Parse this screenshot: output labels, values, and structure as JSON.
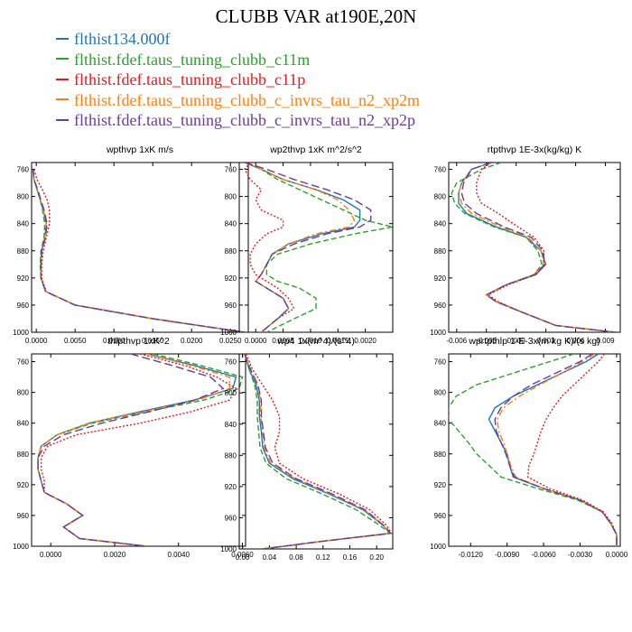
{
  "title": "CLUBB VAR at190E,20N",
  "legend": [
    {
      "name": "flthist134.000f",
      "color": "#1f77b4",
      "dash": "solid"
    },
    {
      "name": "flthist.fdef.taus_tuning_clubb_c11m",
      "color": "#2ca02c",
      "dash": "dashed"
    },
    {
      "name": "flthist.fdef.taus_tuning_clubb_c11p",
      "color": "#e41a1c",
      "dash": "dotted"
    },
    {
      "name": "flthist.fdef.taus_tuning_clubb_c_invrs_tau_n2_xp2m",
      "color": "#ff7f0e",
      "dash": "dashdot"
    },
    {
      "name": "flthist.fdef.taus_tuning_clubb_c_invrs_tau_n2_xp2p",
      "color": "#6a3d9a",
      "dash": "longdash"
    }
  ],
  "chart_data": [
    {
      "type": "line",
      "title": "wpthvp   1xK m/s",
      "ylim": [
        1000,
        750
      ],
      "xlim": [
        -0.0006,
        0.0273
      ],
      "yticks": [
        760,
        800,
        840,
        880,
        920,
        960,
        1000
      ],
      "xticks": [
        0.0,
        0.005,
        0.01,
        0.015,
        0.02,
        0.025
      ],
      "xticklabels": [
        "0.0000",
        "0.0050",
        "0.0100",
        "0.0150",
        "0.0200",
        "0.0250"
      ],
      "y": [
        760,
        775,
        790,
        805,
        820,
        840,
        860,
        880,
        900,
        920,
        940,
        960,
        980,
        1000
      ],
      "series": [
        {
          "values": [
            -0.0004,
            -0.0003,
            0.0001,
            0.0005,
            0.0009,
            0.0013,
            0.0011,
            0.0007,
            0.0006,
            0.0006,
            0.0012,
            0.005,
            0.015,
            0.0268
          ]
        },
        {
          "values": [
            -0.0004,
            -0.0003,
            0.0001,
            0.0005,
            0.0008,
            0.0011,
            0.001,
            0.0006,
            0.0005,
            0.0006,
            0.0012,
            0.005,
            0.015,
            0.0268
          ]
        },
        {
          "values": [
            -0.0003,
            0.0001,
            0.0008,
            0.0014,
            0.0017,
            0.0017,
            0.0013,
            0.0009,
            0.0007,
            0.0007,
            0.0013,
            0.005,
            0.015,
            0.0268
          ]
        },
        {
          "values": [
            -0.0004,
            -0.0003,
            0.0001,
            0.0005,
            0.0009,
            0.0013,
            0.0011,
            0.0007,
            0.0006,
            0.0006,
            0.0012,
            0.005,
            0.015,
            0.0268
          ]
        },
        {
          "values": [
            -0.0004,
            -0.0003,
            0.0002,
            0.0006,
            0.001,
            0.0014,
            0.0012,
            0.0007,
            0.0006,
            0.0006,
            0.0012,
            0.005,
            0.015,
            0.0268
          ]
        }
      ]
    },
    {
      "type": "line",
      "title": "wp2thvp   1xK m^2/s^2",
      "ylim": [
        1000,
        750
      ],
      "xlim": [
        -0.0003,
        0.0025
      ],
      "yticks": [
        760,
        800,
        840,
        880,
        920,
        960,
        1000
      ],
      "xticks": [
        0.0,
        0.0005,
        0.001,
        0.0015,
        0.002
      ],
      "xticklabels": [
        "0.0000",
        "0.0005",
        "0.0010",
        "0.0015",
        "0.0020"
      ],
      "y": [
        750,
        760,
        775,
        790,
        805,
        820,
        835,
        845,
        855,
        870,
        885,
        900,
        915,
        925,
        935,
        950,
        965,
        980,
        1000
      ],
      "series": [
        {
          "values": [
            -0.0002,
            0.0001,
            0.0005,
            0.0011,
            0.0016,
            0.0019,
            0.0019,
            0.0018,
            0.0012,
            0.0006,
            0.0003,
            0.0002,
            0.0001,
            0.0,
            0.0002,
            0.0005,
            0.0006,
            0.0004,
            0.0001
          ]
        },
        {
          "values": [
            -0.0002,
            0.0001,
            0.0004,
            0.0008,
            0.0012,
            0.0016,
            0.002,
            0.0025,
            0.0018,
            0.001,
            0.0004,
            0.0002,
            0.0002,
            0.0004,
            0.0008,
            0.0011,
            0.0011,
            0.0007,
            0.0002
          ]
        },
        {
          "values": [
            -0.0001,
            -0.0002,
            -0.0001,
            0.0001,
            0.0,
            0.0001,
            0.0005,
            0.0005,
            0.0002,
            0.0,
            -0.0001,
            -0.0001,
            0.0,
            0.0002,
            0.0004,
            0.0006,
            0.0007,
            0.0004,
            0.0001
          ]
        },
        {
          "values": [
            -0.0002,
            0.0001,
            0.0005,
            0.0011,
            0.0015,
            0.0017,
            0.0018,
            0.0017,
            0.0011,
            0.0006,
            0.0003,
            0.0002,
            0.0001,
            0.0,
            0.0002,
            0.0005,
            0.0006,
            0.0004,
            0.0001
          ]
        },
        {
          "values": [
            -0.0002,
            0.0002,
            0.0007,
            0.0013,
            0.0018,
            0.0021,
            0.0021,
            0.0019,
            0.0013,
            0.0007,
            0.0003,
            0.0002,
            0.0001,
            0.0,
            0.0002,
            0.0005,
            0.0006,
            0.0004,
            0.0001
          ]
        }
      ]
    },
    {
      "type": "line",
      "title": "rtpthvp   1E-3x(kg/kg) K",
      "ylim": [
        1000,
        750
      ],
      "xlim": [
        -0.0068,
        0.0105
      ],
      "yticks": [
        760,
        800,
        840,
        880,
        920,
        960,
        1000
      ],
      "xticks": [
        -0.006,
        -0.003,
        0.0,
        0.003,
        0.006,
        0.009
      ],
      "xticklabels": [
        "-0.006",
        "-0.003",
        "0.000",
        "0.003",
        "0.006",
        "0.009"
      ],
      "y": [
        750,
        760,
        780,
        795,
        810,
        825,
        845,
        860,
        880,
        900,
        915,
        930,
        945,
        955,
        970,
        990,
        1000
      ],
      "series": [
        {
          "values": [
            -0.0025,
            -0.0045,
            -0.0055,
            -0.0058,
            -0.0058,
            -0.005,
            -0.002,
            0.001,
            0.0025,
            0.003,
            0.002,
            -0.001,
            -0.003,
            -0.002,
            0.0005,
            0.004,
            0.01
          ]
        },
        {
          "values": [
            -0.0015,
            -0.0035,
            -0.006,
            -0.0065,
            -0.0062,
            -0.0052,
            -0.0022,
            0.001,
            0.0022,
            0.0026,
            0.0018,
            -0.001,
            -0.003,
            -0.002,
            0.0005,
            0.004,
            0.01
          ]
        },
        {
          "values": [
            -0.0025,
            -0.0035,
            -0.004,
            -0.004,
            -0.0035,
            -0.0018,
            0.0002,
            0.0018,
            0.0028,
            0.0028,
            0.002,
            -0.0008,
            -0.0028,
            -0.0018,
            0.0005,
            0.004,
            0.01
          ]
        },
        {
          "values": [
            -0.0025,
            -0.0045,
            -0.0055,
            -0.0058,
            -0.0055,
            -0.0045,
            -0.0015,
            0.0012,
            0.0025,
            0.0028,
            0.0018,
            -0.001,
            -0.003,
            -0.002,
            0.0005,
            0.004,
            0.01
          ]
        },
        {
          "values": [
            -0.0025,
            -0.0045,
            -0.0053,
            -0.0055,
            -0.0052,
            -0.004,
            -0.0012,
            0.0015,
            0.0027,
            0.0029,
            0.0019,
            -0.001,
            -0.003,
            -0.002,
            0.0005,
            0.004,
            0.01
          ]
        }
      ]
    },
    {
      "type": "line",
      "title": "thlpthvp   1xK^2",
      "ylim": [
        1000,
        750
      ],
      "xlim": [
        -0.0006,
        0.0061
      ],
      "yticks": [
        760,
        800,
        840,
        880,
        920,
        960,
        1000
      ],
      "xticks": [
        0.0,
        0.002,
        0.004,
        0.006
      ],
      "xticklabels": [
        "0.0000",
        "0.0020",
        "0.0040",
        "0.0060"
      ],
      "y": [
        750,
        765,
        780,
        795,
        810,
        825,
        840,
        855,
        870,
        885,
        900,
        915,
        930,
        945,
        960,
        975,
        990,
        1000
      ],
      "series": [
        {
          "values": [
            0.003,
            0.0045,
            0.0058,
            0.0057,
            0.0045,
            0.0028,
            0.0012,
            0.0002,
            -0.0003,
            -0.0004,
            -0.0004,
            -0.0003,
            -0.0002,
            0.0005,
            0.001,
            0.0004,
            0.0009,
            0.003
          ]
        },
        {
          "values": [
            0.0032,
            0.0047,
            0.006,
            0.0059,
            0.0048,
            0.003,
            0.0013,
            0.0002,
            -0.0003,
            -0.0004,
            -0.0004,
            -0.0003,
            -0.0002,
            0.0005,
            0.001,
            0.0004,
            0.0009,
            0.003
          ]
        },
        {
          "values": [
            0.0028,
            0.0042,
            0.0052,
            0.0058,
            0.0056,
            0.0044,
            0.0028,
            0.0008,
            -0.0001,
            -0.0003,
            -0.0003,
            -0.0002,
            -0.0002,
            0.0005,
            0.001,
            0.0004,
            0.0009,
            0.003
          ]
        },
        {
          "values": [
            0.003,
            0.0044,
            0.0056,
            0.0056,
            0.0046,
            0.0029,
            0.0012,
            0.0002,
            -0.0003,
            -0.0004,
            -0.0004,
            -0.0003,
            -0.0002,
            0.0005,
            0.001,
            0.0004,
            0.0009,
            0.003
          ]
        },
        {
          "values": [
            0.0025,
            0.0038,
            0.005,
            0.0054,
            0.0045,
            0.0031,
            0.0016,
            0.0004,
            -0.0002,
            -0.0004,
            -0.0004,
            -0.0003,
            -0.0002,
            0.0005,
            0.001,
            0.0004,
            0.0009,
            0.003
          ]
        }
      ]
    },
    {
      "type": "line",
      "title": "wp4   1x(m^4)/(s^4)",
      "ylim": [
        1000,
        750
      ],
      "xlim": [
        -0.005,
        0.224
      ],
      "yticks": [
        760,
        800,
        840,
        880,
        920,
        960,
        1000
      ],
      "xticks": [
        0.0,
        0.04,
        0.08,
        0.12,
        0.16,
        0.2
      ],
      "xticklabels": [
        "0.00",
        "0.04",
        "0.08",
        "0.12",
        "0.16",
        "0.20"
      ],
      "y": [
        750,
        770,
        790,
        810,
        830,
        850,
        870,
        890,
        910,
        930,
        950,
        970,
        980,
        990,
        1000
      ],
      "series": [
        {
          "values": [
            0.003,
            0.01,
            0.02,
            0.025,
            0.025,
            0.028,
            0.03,
            0.04,
            0.075,
            0.13,
            0.18,
            0.21,
            0.22,
            0.12,
            0.03
          ]
        },
        {
          "values": [
            0.003,
            0.01,
            0.018,
            0.022,
            0.022,
            0.024,
            0.026,
            0.035,
            0.065,
            0.12,
            0.17,
            0.205,
            0.22,
            0.12,
            0.03
          ]
        },
        {
          "values": [
            0.005,
            0.015,
            0.03,
            0.045,
            0.055,
            0.055,
            0.048,
            0.055,
            0.09,
            0.145,
            0.19,
            0.215,
            0.222,
            0.12,
            0.03
          ]
        },
        {
          "values": [
            0.003,
            0.012,
            0.022,
            0.027,
            0.027,
            0.03,
            0.032,
            0.042,
            0.078,
            0.132,
            0.182,
            0.21,
            0.221,
            0.12,
            0.03
          ]
        },
        {
          "values": [
            0.003,
            0.012,
            0.023,
            0.028,
            0.028,
            0.031,
            0.034,
            0.045,
            0.08,
            0.135,
            0.183,
            0.211,
            0.221,
            0.12,
            0.03
          ]
        }
      ]
    },
    {
      "type": "line",
      "title": "wprtpthlp   1-E-3x(m kg K)/(s kg)",
      "ylim": [
        1000,
        750
      ],
      "xlim": [
        -0.0138,
        0.0003
      ],
      "yticks": [
        760,
        800,
        840,
        880,
        920,
        960,
        1000
      ],
      "xticks": [
        -0.012,
        -0.009,
        -0.006,
        -0.003,
        0.0
      ],
      "xticklabels": [
        "-0.0120",
        "-0.0090",
        "-0.0060",
        "-0.0030",
        "0.0000"
      ],
      "y": [
        750,
        760,
        775,
        790,
        805,
        820,
        835,
        850,
        865,
        880,
        895,
        910,
        925,
        940,
        955,
        970,
        985,
        1000
      ],
      "series": [
        {
          "values": [
            -0.0015,
            -0.0025,
            -0.0045,
            -0.0065,
            -0.0085,
            -0.01,
            -0.0105,
            -0.01,
            -0.0095,
            -0.009,
            -0.0088,
            -0.0085,
            -0.006,
            -0.003,
            -0.0012,
            -0.0005,
            0.0,
            0.0
          ]
        },
        {
          "values": [
            -0.0035,
            -0.0055,
            -0.0085,
            -0.0115,
            -0.0132,
            -0.0138,
            -0.0138,
            -0.013,
            -0.0122,
            -0.0115,
            -0.0105,
            -0.0095,
            -0.0065,
            -0.0032,
            -0.0012,
            -0.0005,
            0.0,
            0.0
          ]
        },
        {
          "values": [
            -0.001,
            -0.0015,
            -0.0025,
            -0.0035,
            -0.0045,
            -0.0052,
            -0.0058,
            -0.0062,
            -0.0065,
            -0.0068,
            -0.0072,
            -0.0073,
            -0.0055,
            -0.0028,
            -0.0011,
            -0.0004,
            0.0,
            0.0
          ]
        },
        {
          "values": [
            -0.0018,
            -0.0028,
            -0.0045,
            -0.0063,
            -0.008,
            -0.0093,
            -0.0098,
            -0.0097,
            -0.0093,
            -0.009,
            -0.0087,
            -0.0083,
            -0.006,
            -0.003,
            -0.0012,
            -0.0005,
            0.0,
            0.0
          ]
        },
        {
          "values": [
            -0.002,
            -0.003,
            -0.005,
            -0.007,
            -0.0085,
            -0.0095,
            -0.01,
            -0.0099,
            -0.0095,
            -0.0091,
            -0.0088,
            -0.0084,
            -0.006,
            -0.003,
            -0.0012,
            -0.0005,
            0.0,
            0.0
          ]
        }
      ]
    }
  ]
}
